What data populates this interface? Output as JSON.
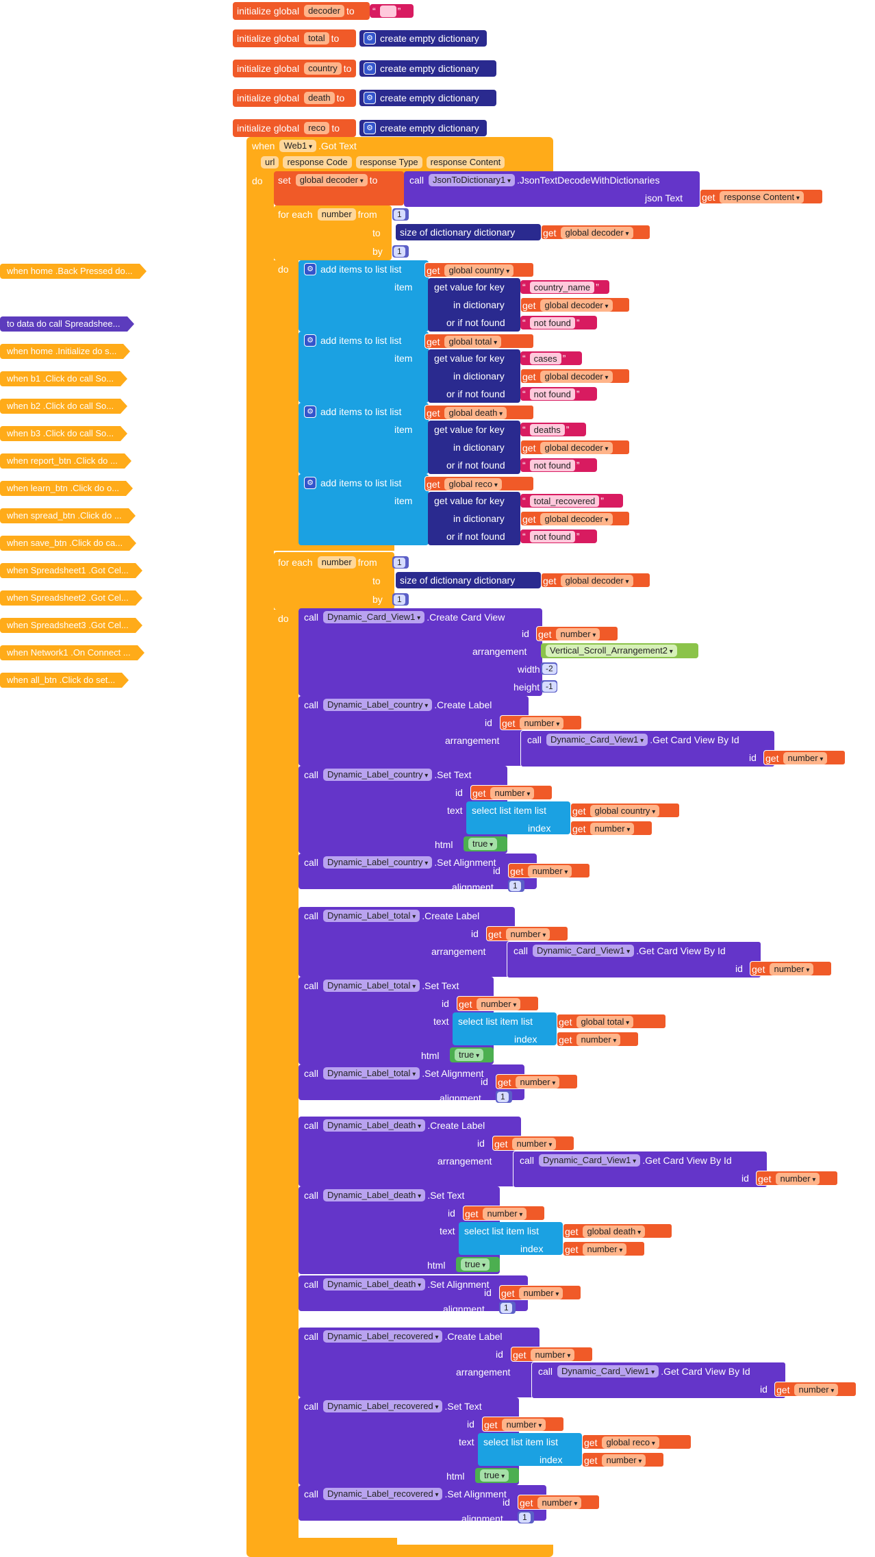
{
  "globals": [
    {
      "kw": "initialize global",
      "name": "decoder",
      "to": "to",
      "value_type": "string",
      "value": ""
    },
    {
      "kw": "initialize global",
      "name": "total",
      "to": "to",
      "value_type": "dict",
      "value": "create empty dictionary"
    },
    {
      "kw": "initialize global",
      "name": "country",
      "to": "to",
      "value_type": "dict",
      "value": "create empty dictionary"
    },
    {
      "kw": "initialize global",
      "name": "death",
      "to": "to",
      "value_type": "dict",
      "value": "create empty dictionary"
    },
    {
      "kw": "initialize global",
      "name": "reco",
      "to": "to",
      "value_type": "dict",
      "value": "create empty dictionary"
    }
  ],
  "event": {
    "when": "when",
    "component": "Web1",
    "method": ".Got Text",
    "params": [
      "url",
      "response Code",
      "response Type",
      "response Content"
    ],
    "do": "do"
  },
  "set_decoder": {
    "set": "set",
    "var": "global decoder",
    "to": "to",
    "call": "call",
    "component": "JsonToDictionary1",
    "method": ".JsonTextDecodeWithDictionaries",
    "arg_label": "json Text",
    "get": "get",
    "arg": "response Content"
  },
  "loop1": {
    "for_each": "for each",
    "var": "number",
    "from": "from",
    "from_val": "1",
    "to": "to",
    "size": "size of dictionary",
    "dictionary": "dictionary",
    "get": "get",
    "dict_var": "global decoder",
    "by": "by",
    "by_val": "1",
    "do": "do"
  },
  "add_items": [
    {
      "label": "add items to list",
      "list": "list",
      "get": "get",
      "list_var": "global country",
      "item": "item",
      "gvfk": "get value for key",
      "key": "country_name",
      "in_dict": "in dictionary",
      "dict_var": "global decoder",
      "if_not": "or if not found",
      "not_found": "not found"
    },
    {
      "label": "add items to list",
      "list": "list",
      "get": "get",
      "list_var": "global total",
      "item": "item",
      "gvfk": "get value for key",
      "key": "cases",
      "in_dict": "in dictionary",
      "dict_var": "global decoder",
      "if_not": "or if not found",
      "not_found": "not found"
    },
    {
      "label": "add items to list",
      "list": "list",
      "get": "get",
      "list_var": "global death",
      "item": "item",
      "gvfk": "get value for key",
      "key": "deaths",
      "in_dict": "in dictionary",
      "dict_var": "global decoder",
      "if_not": "or if not found",
      "not_found": "not found"
    },
    {
      "label": "add items to list",
      "list": "list",
      "get": "get",
      "list_var": "global reco",
      "item": "item",
      "gvfk": "get value for key",
      "key": "total_recovered",
      "in_dict": "in dictionary",
      "dict_var": "global decoder",
      "if_not": "or if not found",
      "not_found": "not found"
    }
  ],
  "loop2": {
    "for_each": "for each",
    "var": "number",
    "from": "from",
    "from_val": "1",
    "to": "to",
    "size": "size of dictionary",
    "dictionary": "dictionary",
    "get": "get",
    "dict_var": "global decoder",
    "by": "by",
    "by_val": "1",
    "do": "do"
  },
  "card": {
    "call": "call",
    "component": "Dynamic_Card_View1",
    "method": ".Create Card View",
    "id": "id",
    "get": "get",
    "num": "number",
    "arrangement": "arrangement",
    "arr_val": "Vertical_Scroll_Arrangement2",
    "width": "width",
    "width_val": "-2",
    "height": "height",
    "height_val": "-1"
  },
  "label_groups": [
    {
      "component": "Dynamic_Label_country",
      "list_var": "global country"
    },
    {
      "component": "Dynamic_Label_total",
      "list_var": "global total"
    },
    {
      "component": "Dynamic_Label_death",
      "list_var": "global death"
    },
    {
      "component": "Dynamic_Label_recovered",
      "list_var": "global reco"
    }
  ],
  "common": {
    "call": "call",
    "get": "get",
    "num": "number",
    "id": "id",
    "arrangement": "arrangement",
    "create_label": ".Create Label",
    "set_text": ".Set Text",
    "set_align": ".Set Alignment",
    "card_comp": "Dynamic_Card_View1",
    "card_by_id": ".Get Card View By Id",
    "text": "text",
    "select": "select list item",
    "list": "list",
    "index": "index",
    "html": "html",
    "true": "true",
    "alignment": "alignment",
    "align_val": "1"
  },
  "sidebar": [
    {
      "text": "when home .Back Pressed do...",
      "type": "orange"
    },
    {
      "text": "to data do call Spreadshee...",
      "type": "purple"
    },
    {
      "text": "when home .Initialize do s...",
      "type": "orange"
    },
    {
      "text": "when b1 .Click do call So...",
      "type": "orange"
    },
    {
      "text": "when b2 .Click do call So...",
      "type": "orange"
    },
    {
      "text": "when b3 .Click do call So...",
      "type": "orange"
    },
    {
      "text": "when report_btn .Click do ...",
      "type": "orange"
    },
    {
      "text": "when learn_btn .Click do o...",
      "type": "orange"
    },
    {
      "text": "when spread_btn .Click do ...",
      "type": "orange"
    },
    {
      "text": "when save_btn .Click do ca...",
      "type": "orange"
    },
    {
      "text": "when Spreadsheet1 .Got Cel...",
      "type": "orange"
    },
    {
      "text": "when Spreadsheet2 .Got Cel...",
      "type": "orange"
    },
    {
      "text": "when Spreadsheet3 .Got Cel...",
      "type": "orange"
    },
    {
      "text": "when Network1 .On Connect ...",
      "type": "orange"
    },
    {
      "text": "when all_btn .Click do set...",
      "type": "orange"
    }
  ]
}
